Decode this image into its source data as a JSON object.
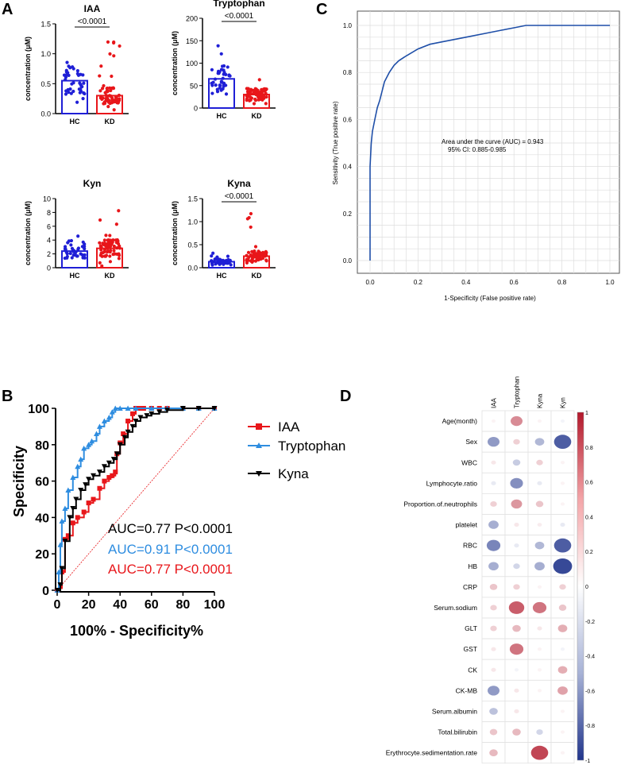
{
  "panel_labels": {
    "A": "A",
    "B": "B",
    "C": "C",
    "D": "D"
  },
  "chart_data": [
    {
      "type": "bar",
      "panel": "A",
      "title": "IAA",
      "ylabel": "concentration (μM)",
      "categories": [
        "HC",
        "KD"
      ],
      "values": [
        0.55,
        0.3
      ],
      "ylim": [
        0,
        1.5
      ],
      "yticks": [
        "0.0",
        "0.5",
        "1.0",
        "1.5"
      ],
      "significance": "<0.0001",
      "colors": [
        "#1f1fd6",
        "#e8161a"
      ]
    },
    {
      "type": "bar",
      "panel": "A",
      "title": "Tryptophan",
      "ylabel": "concentration (μM)",
      "categories": [
        "HC",
        "KD"
      ],
      "values": [
        65,
        30
      ],
      "ylim": [
        0,
        200
      ],
      "yticks": [
        "0",
        "50",
        "100",
        "150",
        "200"
      ],
      "significance": "<0.0001",
      "colors": [
        "#1f1fd6",
        "#e8161a"
      ]
    },
    {
      "type": "bar",
      "panel": "A",
      "title": "Kyn",
      "ylabel": "concentration (μM)",
      "categories": [
        "HC",
        "KD"
      ],
      "values": [
        2.4,
        2.8
      ],
      "ylim": [
        0,
        10
      ],
      "yticks": [
        "0",
        "2",
        "4",
        "6",
        "8",
        "10"
      ],
      "significance": "",
      "colors": [
        "#1f1fd6",
        "#e8161a"
      ]
    },
    {
      "type": "bar",
      "panel": "A",
      "title": "Kyna",
      "ylabel": "concentration (μM)",
      "categories": [
        "HC",
        "KD"
      ],
      "values": [
        0.13,
        0.25
      ],
      "ylim": [
        0,
        1.5
      ],
      "yticks": [
        "0.0",
        "0.5",
        "1.0",
        "1.5"
      ],
      "significance": "<0.0001",
      "colors": [
        "#1f1fd6",
        "#e8161a"
      ]
    },
    {
      "type": "line",
      "panel": "B",
      "xlabel": "100% - Specificity%",
      "ylabel": "Specificity",
      "xlim": [
        0,
        100
      ],
      "ylim": [
        0,
        100
      ],
      "xticks": [
        "0",
        "20",
        "40",
        "60",
        "80",
        "100"
      ],
      "yticks": [
        "0",
        "20",
        "40",
        "60",
        "80",
        "100"
      ],
      "series": [
        {
          "name": "IAA",
          "color": "#e8161a",
          "marker": "square",
          "x": [
            0,
            2,
            3,
            5,
            7,
            10,
            13,
            17,
            20,
            23,
            27,
            30,
            33,
            35,
            37,
            38,
            40,
            42,
            45,
            48,
            50,
            52,
            55,
            60,
            65,
            70,
            80,
            90,
            100
          ],
          "y": [
            0,
            2,
            10,
            28,
            30,
            37,
            40,
            43,
            48,
            50,
            56,
            60,
            62,
            63,
            65,
            75,
            81,
            86,
            93,
            97,
            100,
            100,
            100,
            100,
            100,
            100,
            100,
            100,
            100
          ]
        },
        {
          "name": "Tryptophan",
          "color": "#2e8de0",
          "marker": "triangle",
          "x": [
            0,
            1,
            2,
            3,
            5,
            7,
            10,
            13,
            15,
            17,
            20,
            22,
            25,
            27,
            30,
            33,
            35,
            37,
            40,
            45,
            50,
            60,
            70,
            80,
            90,
            100
          ],
          "y": [
            0,
            10,
            25,
            38,
            45,
            55,
            62,
            68,
            72,
            78,
            80,
            82,
            86,
            90,
            93,
            95,
            98,
            100,
            100,
            100,
            100,
            100,
            100,
            100,
            100,
            100
          ]
        },
        {
          "name": "Kyna",
          "color": "#000000",
          "marker": "triangle-down",
          "x": [
            0,
            2,
            3,
            5,
            8,
            10,
            12,
            15,
            18,
            20,
            23,
            27,
            30,
            33,
            36,
            38,
            40,
            43,
            45,
            48,
            50,
            53,
            57,
            60,
            65,
            70,
            80,
            90,
            100
          ],
          "y": [
            0,
            3,
            12,
            27,
            40,
            45,
            50,
            55,
            58,
            61,
            63,
            65,
            68,
            70,
            72,
            75,
            80,
            84,
            87,
            90,
            93,
            95,
            96,
            97,
            98,
            99,
            100,
            100,
            100
          ]
        }
      ],
      "reference_line": {
        "x": [
          0,
          100
        ],
        "y": [
          0,
          100
        ],
        "color": "#e8161a"
      },
      "annotations": [
        {
          "text": "AUC=0.77 P<0.0001",
          "color": "#000000"
        },
        {
          "text": "AUC=0.91 P<0.0001",
          "color": "#2e8de0"
        },
        {
          "text": "AUC=0.77 P<0.0001",
          "color": "#e8161a"
        }
      ],
      "legend": "right"
    },
    {
      "type": "line",
      "panel": "C",
      "xlabel": "1-Specificity (False positive rate)",
      "ylabel": "Sensitivity (True positive rate)",
      "xlim": [
        0,
        1
      ],
      "ylim": [
        0,
        1
      ],
      "xticks": [
        "0.0",
        "0.2",
        "0.4",
        "0.6",
        "0.8",
        "1.0"
      ],
      "yticks": [
        "0.0",
        "0.2",
        "0.4",
        "0.6",
        "0.8",
        "1.0"
      ],
      "grid": true,
      "series": [
        {
          "name": "ROC",
          "color": "#1f4fa8",
          "x": [
            0,
            0,
            0.005,
            0.01,
            0.02,
            0.03,
            0.04,
            0.05,
            0.06,
            0.08,
            0.1,
            0.12,
            0.15,
            0.2,
            0.25,
            0.3,
            0.4,
            0.5,
            0.55,
            0.6,
            0.65,
            0.7,
            0.8,
            1.0
          ],
          "y": [
            0,
            0.4,
            0.5,
            0.55,
            0.6,
            0.65,
            0.68,
            0.72,
            0.76,
            0.8,
            0.83,
            0.85,
            0.87,
            0.9,
            0.92,
            0.93,
            0.95,
            0.97,
            0.98,
            0.99,
            1.0,
            1.0,
            1.0,
            1.0
          ]
        }
      ],
      "annotations": [
        {
          "text": "Area under the curve (AUC) = 0.943"
        },
        {
          "text": "95% CI: 0.885-0.985"
        }
      ]
    },
    {
      "type": "heatmap",
      "panel": "D",
      "columns": [
        "IAA",
        "Tryptophan",
        "Kyna",
        "Kyn"
      ],
      "rows": [
        "Age(month)",
        "Sex",
        "WBC",
        "Lymphocyte.ratio",
        "Proportion.of.neutrophils",
        "platelet",
        "RBC",
        "HB",
        "CRP",
        "Serum.sodium",
        "GLT",
        "GST",
        "CK",
        "CK-MB",
        "Serum.albumin",
        "Total.bilirubin",
        "Erythrocyte.sedimentation.rate"
      ],
      "values": [
        [
          0.05,
          0.5,
          0.05,
          -0.05
        ],
        [
          -0.5,
          0.2,
          -0.35,
          -0.8
        ],
        [
          0.1,
          -0.25,
          0.2,
          0.05
        ],
        [
          -0.1,
          -0.55,
          -0.1,
          0.05
        ],
        [
          0.2,
          0.45,
          0.25,
          0.05
        ],
        [
          -0.4,
          0.1,
          0.08,
          -0.1
        ],
        [
          -0.6,
          -0.1,
          -0.35,
          -0.8
        ],
        [
          -0.4,
          -0.2,
          -0.4,
          -0.9
        ],
        [
          0.25,
          0.2,
          0.05,
          0.2
        ],
        [
          0.2,
          0.7,
          0.6,
          0.25
        ],
        [
          0.2,
          0.3,
          0.1,
          0.35
        ],
        [
          0.1,
          0.6,
          0.05,
          -0.05
        ],
        [
          0.1,
          -0.05,
          0.05,
          0.35
        ],
        [
          -0.5,
          0.1,
          0.05,
          0.4
        ],
        [
          -0.3,
          0.1,
          0.0,
          0.05
        ],
        [
          0.25,
          0.3,
          -0.2,
          0.05
        ],
        [
          0.3,
          0.0,
          0.8,
          0.05
        ]
      ],
      "colorbar": {
        "min": -1,
        "max": 1,
        "ticks": [
          "1",
          "0.8",
          "0.6",
          "0.4",
          "0.2",
          "0",
          "-0.2",
          "-0.4",
          "-0.6",
          "-0.8",
          "-1"
        ]
      }
    }
  ]
}
